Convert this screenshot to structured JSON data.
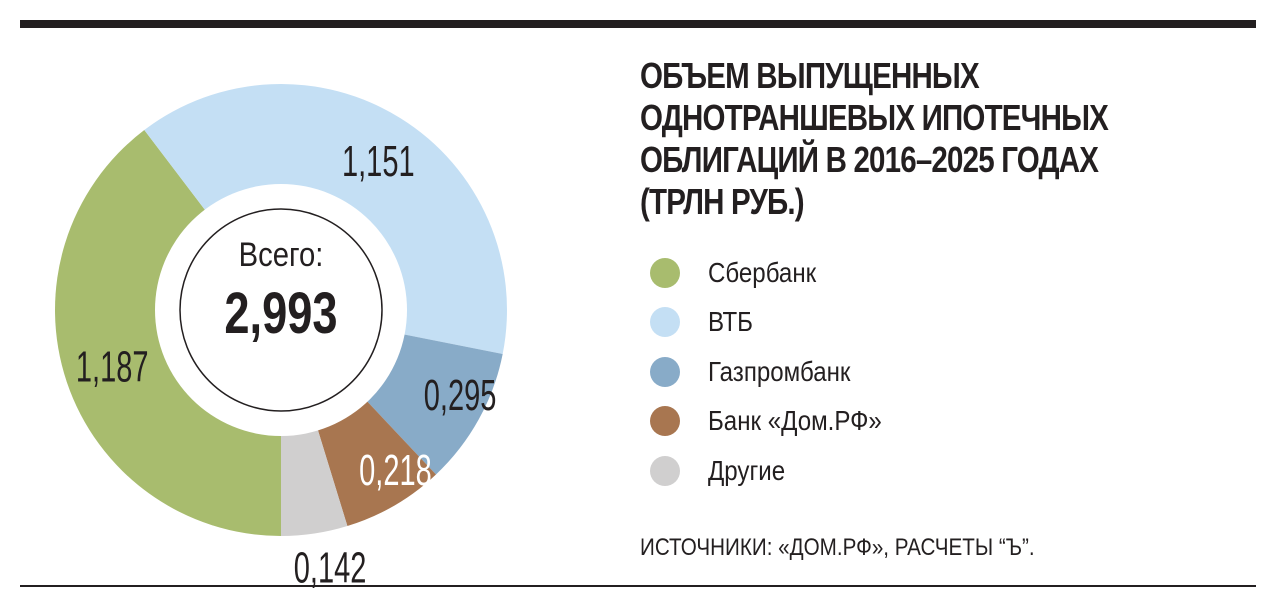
{
  "title_lines": [
    "ОБЪЕМ ВЫПУЩЕННЫХ",
    "ОДНОТРАНШЕВЫХ ИПОТЕЧНЫХ",
    "ОБЛИГАЦИЙ В 2016–2025 ГОДАХ",
    "(ТРЛН РУБ.)"
  ],
  "source": "ИСТОЧНИКИ: «ДОМ.РФ», РАСЧЕТЫ “Ъ”.",
  "center": {
    "caption": "Всего:",
    "total": "2,993"
  },
  "chart_data": {
    "type": "pie",
    "variant": "donut",
    "title": "ОБЪЕМ ВЫПУЩЕННЫХ ОДНОТРАНШЕВЫХ ИПОТЕЧНЫХ ОБЛИГАЦИЙ В 2016–2025 ГОДАХ (ТРЛН РУБ.)",
    "total": 2.993,
    "legend_position": "right",
    "slices": [
      {
        "name": "Сбербанк",
        "value": 1.187,
        "label": "1,187",
        "color": "#a8bc6e",
        "label_color": "#231f20"
      },
      {
        "name": "ВТБ",
        "value": 1.151,
        "label": "1,151",
        "color": "#c4dff4",
        "label_color": "#231f20"
      },
      {
        "name": "Газпромбанк",
        "value": 0.295,
        "label": "0,295",
        "color": "#88abc8",
        "label_color": "#231f20"
      },
      {
        "name": "Банк «Дом.РФ»",
        "value": 0.218,
        "label": "0,218",
        "color": "#a87650",
        "label_color": "#ffffff"
      },
      {
        "name": "Другие",
        "value": 0.142,
        "label": "0,142",
        "color": "#d0cfcf",
        "label_color": "#231f20"
      }
    ]
  }
}
